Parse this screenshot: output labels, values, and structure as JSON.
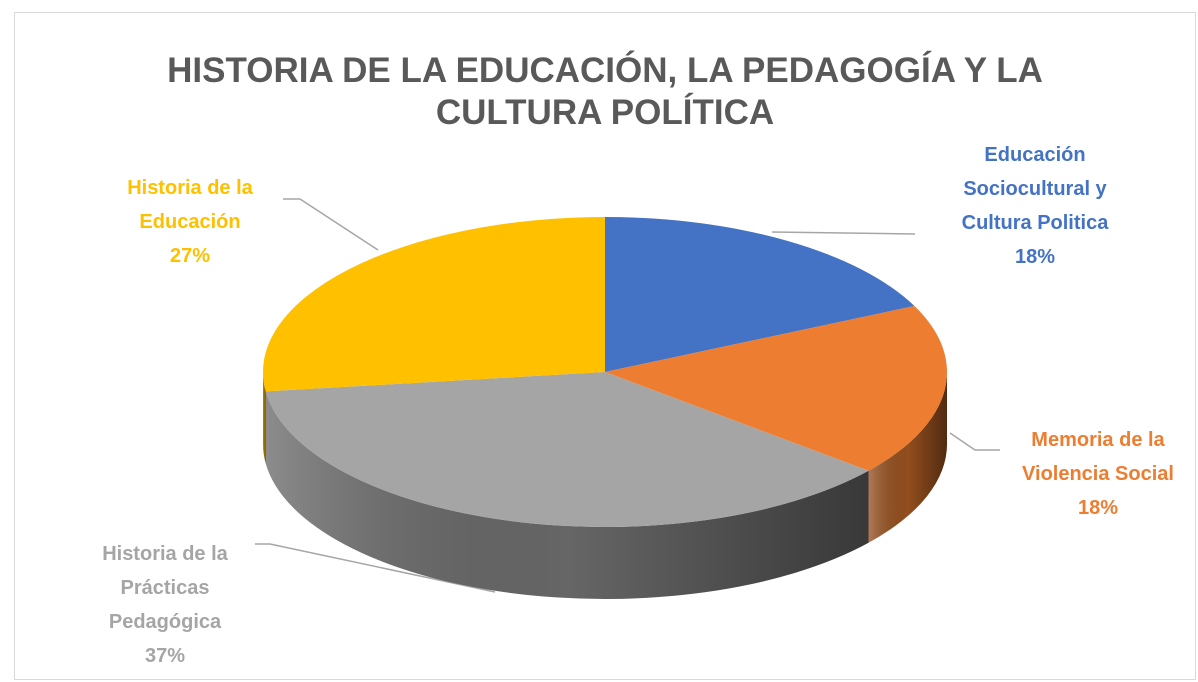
{
  "chart_data": {
    "type": "pie3d",
    "title": "HISTORIA DE LA EDUCACIÓN, LA PEDAGOGÍA Y LA CULTURA POLÍTICA",
    "categories": [
      "Educación Sociocultural y Cultura Politica",
      "Memoria de la Violencia Social",
      "Historia de la Prácticas Pedagógica",
      "Historia de la Educación"
    ],
    "values": [
      18,
      18,
      37,
      27
    ],
    "value_labels": [
      "18%",
      "18%",
      "37%",
      "27%"
    ],
    "colors": [
      "#4472c4",
      "#ed7d31",
      "#a5a5a5",
      "#ffc000"
    ]
  }
}
